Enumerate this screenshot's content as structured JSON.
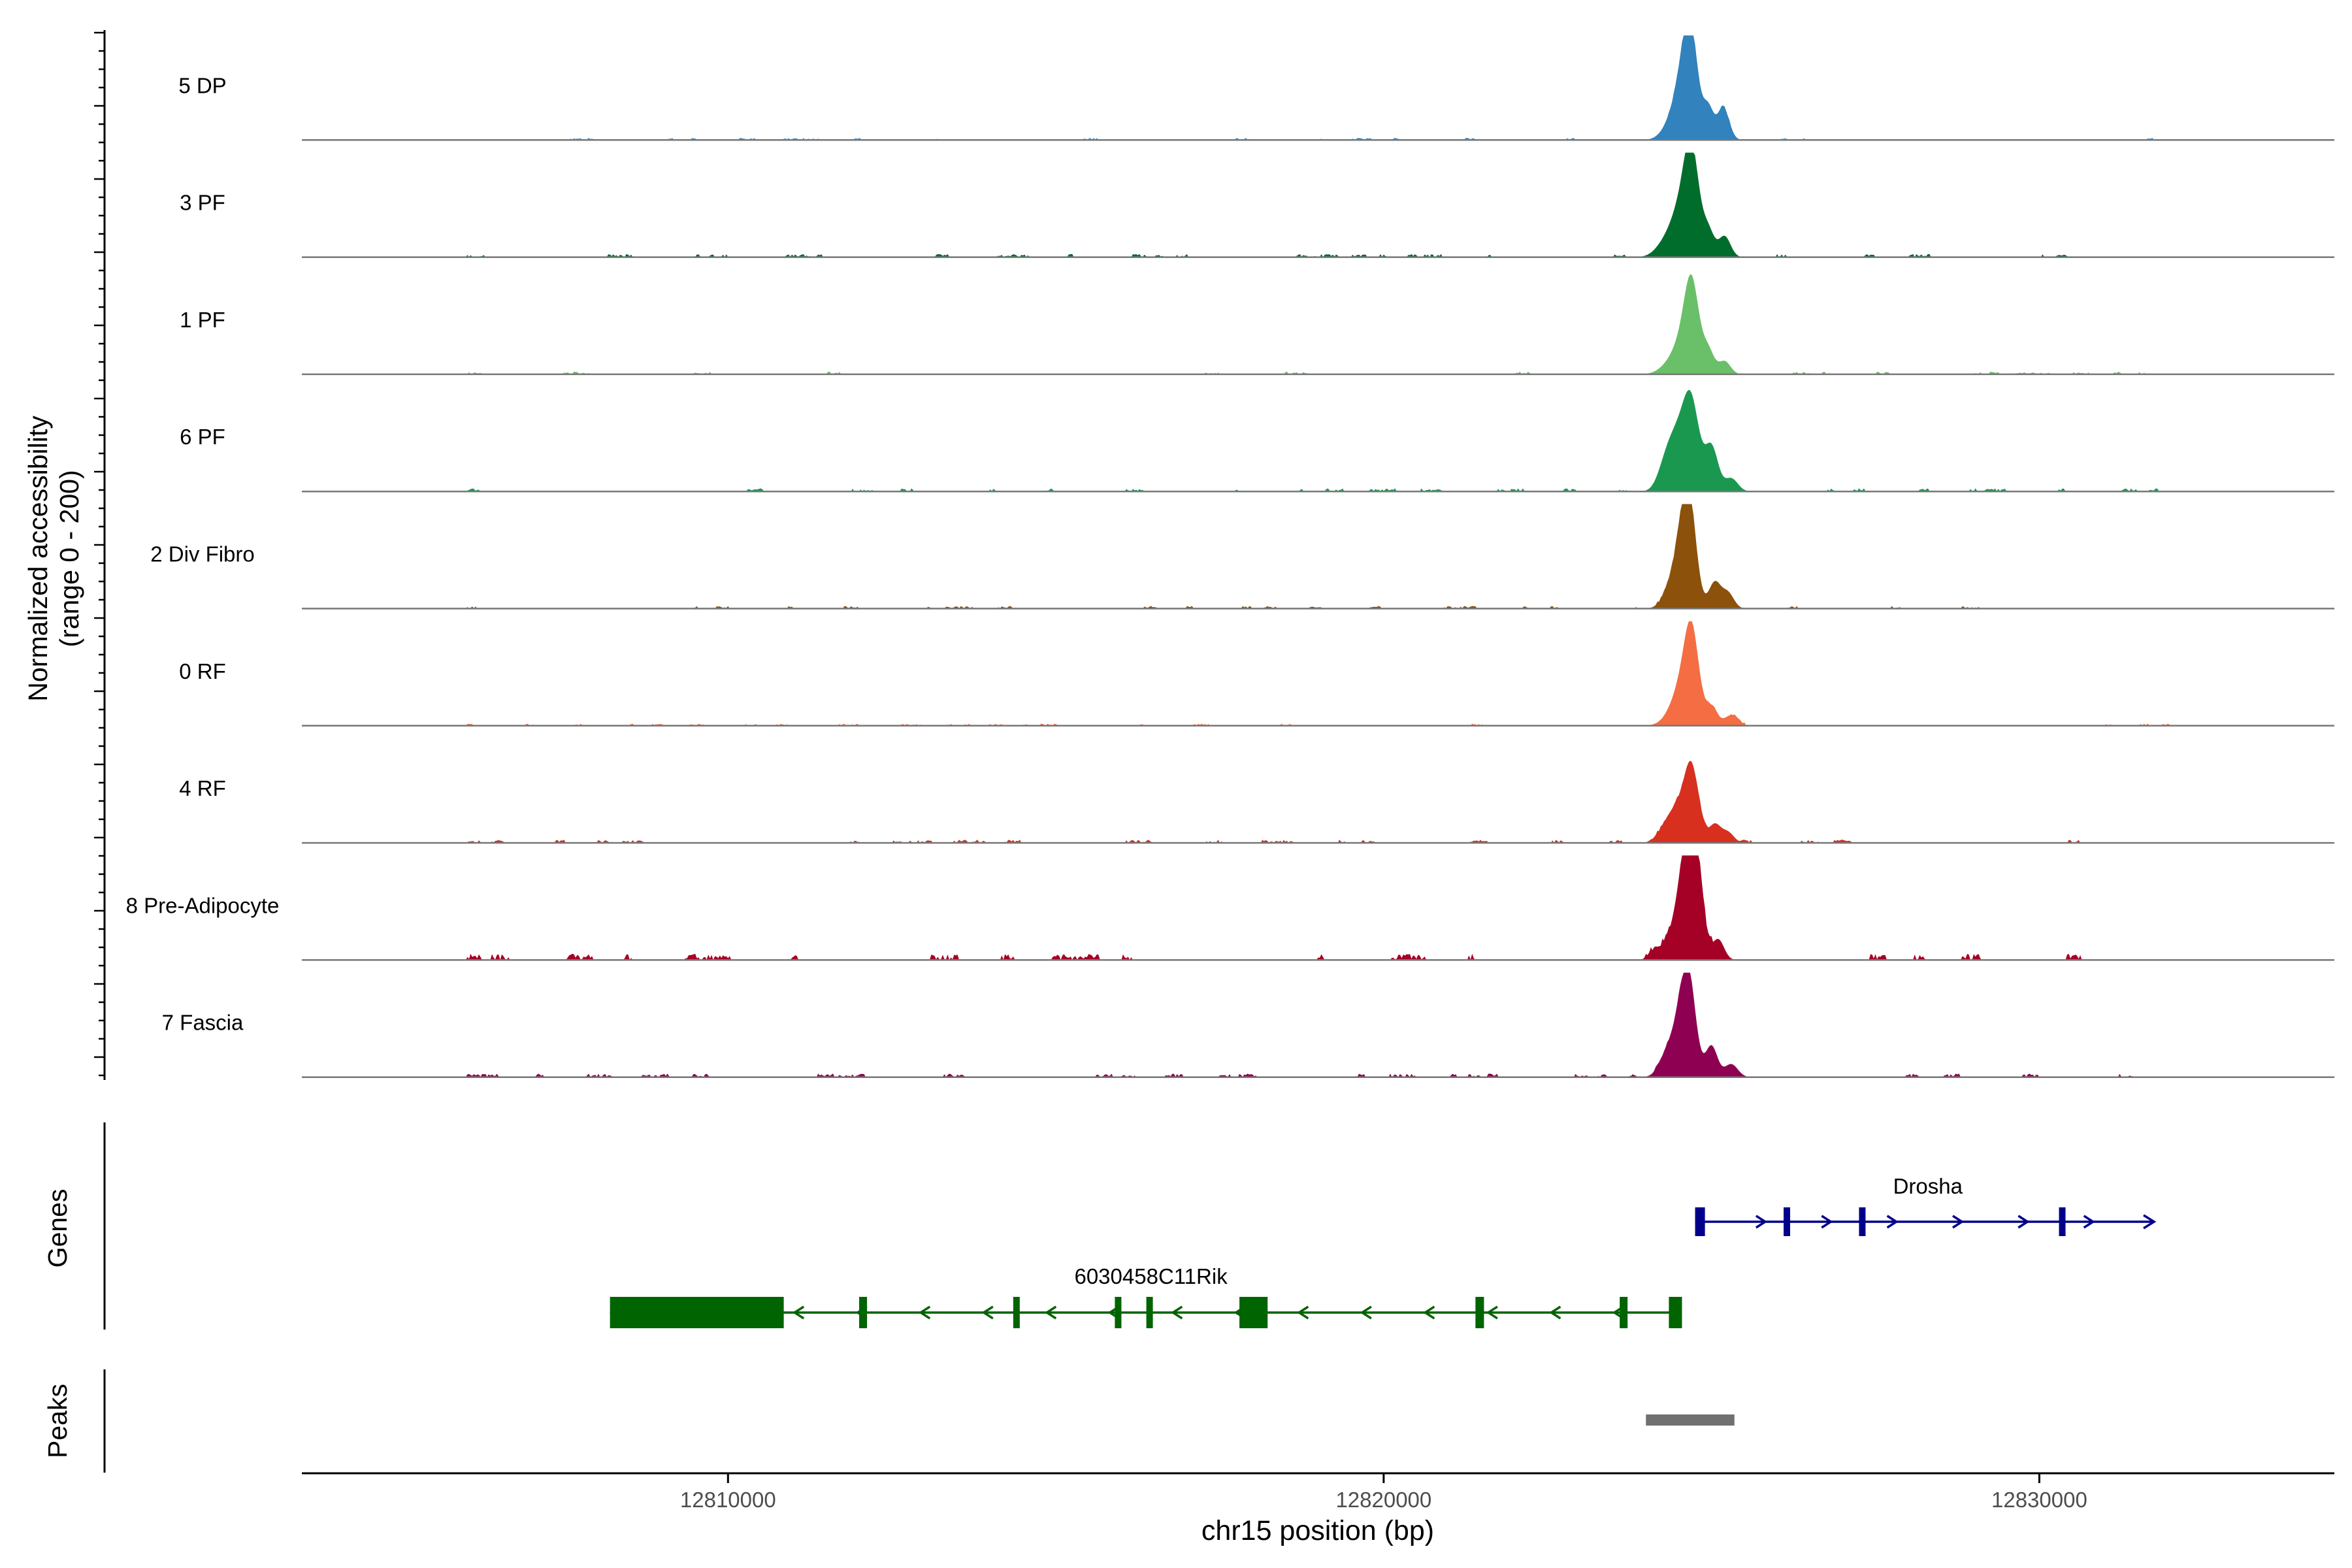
{
  "chart_data": {
    "type": "area",
    "ylabel_lines": [
      "Normalized accessibility",
      "(range 0 - 200)"
    ],
    "xlabel": "chr15 position (bp)",
    "xlim": [
      12803500,
      12834500
    ],
    "x_ticks": [
      12810000,
      12820000,
      12830000
    ],
    "x_tick_labels": [
      "12810000",
      "12820000",
      "12830000"
    ],
    "y_range": [
      0,
      200
    ],
    "tracks": [
      {
        "name": "5 DP",
        "color": "#3182bd",
        "peaks": [
          {
            "x": 12824680,
            "y": 180,
            "w": 110
          },
          {
            "x": 12824560,
            "y": 80,
            "w": 140
          },
          {
            "x": 12824950,
            "y": 60,
            "w": 80
          },
          {
            "x": 12825180,
            "y": 62,
            "w": 90
          },
          {
            "x": 12824400,
            "y": 25,
            "w": 150
          }
        ],
        "noise": 4
      },
      {
        "name": "3 PF",
        "color": "#006d2c",
        "peaks": [
          {
            "x": 12824700,
            "y": 170,
            "w": 110
          },
          {
            "x": 12824550,
            "y": 90,
            "w": 150
          },
          {
            "x": 12824950,
            "y": 50,
            "w": 90
          },
          {
            "x": 12825200,
            "y": 40,
            "w": 90
          },
          {
            "x": 12824300,
            "y": 25,
            "w": 150
          }
        ],
        "noise": 6
      },
      {
        "name": "1 PF",
        "color": "#6abf69",
        "peaks": [
          {
            "x": 12824700,
            "y": 160,
            "w": 110
          },
          {
            "x": 12824550,
            "y": 50,
            "w": 140
          },
          {
            "x": 12824950,
            "y": 45,
            "w": 90
          },
          {
            "x": 12825200,
            "y": 25,
            "w": 90
          },
          {
            "x": 12824350,
            "y": 15,
            "w": 150
          }
        ],
        "noise": 5
      },
      {
        "name": "6 PF",
        "color": "#1a9850",
        "peaks": [
          {
            "x": 12824700,
            "y": 145,
            "w": 120
          },
          {
            "x": 12824500,
            "y": 100,
            "w": 150
          },
          {
            "x": 12825000,
            "y": 85,
            "w": 100
          },
          {
            "x": 12825300,
            "y": 25,
            "w": 100
          },
          {
            "x": 12824300,
            "y": 40,
            "w": 120
          }
        ],
        "noise": 6
      },
      {
        "name": "2 Div Fibro",
        "color": "#8c510a",
        "peaks": [
          {
            "x": 12824650,
            "y": 175,
            "w": 110
          },
          {
            "x": 12824550,
            "y": 90,
            "w": 140
          },
          {
            "x": 12825050,
            "y": 50,
            "w": 90
          },
          {
            "x": 12825250,
            "y": 30,
            "w": 90
          },
          {
            "x": 12824350,
            "y": 20,
            "w": 120
          }
        ],
        "noise": 5
      },
      {
        "name": "0 RF",
        "color": "#f46d43",
        "peaks": [
          {
            "x": 12824700,
            "y": 165,
            "w": 110
          },
          {
            "x": 12824550,
            "y": 60,
            "w": 140
          },
          {
            "x": 12825000,
            "y": 35,
            "w": 90
          },
          {
            "x": 12825300,
            "y": 20,
            "w": 100
          },
          {
            "x": 12824400,
            "y": 15,
            "w": 150
          }
        ],
        "noise": 4
      },
      {
        "name": "4 RF",
        "color": "#d7301f",
        "peaks": [
          {
            "x": 12824700,
            "y": 130,
            "w": 110
          },
          {
            "x": 12824500,
            "y": 60,
            "w": 150
          },
          {
            "x": 12825050,
            "y": 35,
            "w": 90
          },
          {
            "x": 12825250,
            "y": 20,
            "w": 90
          },
          {
            "x": 12824300,
            "y": 20,
            "w": 120
          }
        ],
        "noise": 6
      },
      {
        "name": "8 Pre-Adipocyte",
        "color": "#a50026",
        "peaks": [
          {
            "x": 12824650,
            "y": 200,
            "w": 100
          },
          {
            "x": 12824800,
            "y": 140,
            "w": 90
          },
          {
            "x": 12824500,
            "y": 90,
            "w": 140
          },
          {
            "x": 12825100,
            "y": 40,
            "w": 90
          },
          {
            "x": 12824150,
            "y": 20,
            "w": 90
          }
        ],
        "noise": 12
      },
      {
        "name": "7 Fascia",
        "color": "#8e0152",
        "peaks": [
          {
            "x": 12824650,
            "y": 170,
            "w": 110
          },
          {
            "x": 12824500,
            "y": 80,
            "w": 140
          },
          {
            "x": 12825000,
            "y": 60,
            "w": 90
          },
          {
            "x": 12825300,
            "y": 25,
            "w": 100
          },
          {
            "x": 12824300,
            "y": 25,
            "w": 120
          }
        ],
        "noise": 7
      }
    ],
    "genes": [
      {
        "name": "Drosha",
        "strand": "+",
        "color": "#00008b",
        "start": 12824750,
        "end": 12831750,
        "exons": [
          [
            12824750,
            12824900
          ],
          [
            12826100,
            12826180
          ],
          [
            12827250,
            12827310
          ],
          [
            12830300,
            12830350
          ]
        ]
      },
      {
        "name": "6030458C11Rik",
        "strand": "-",
        "color": "#006400",
        "start": 12808200,
        "end": 12824550,
        "exons": [
          [
            12808200,
            12810850
          ],
          [
            12812000,
            12812120
          ],
          [
            12814350,
            12814400
          ],
          [
            12815900,
            12816000
          ],
          [
            12816380,
            12816420
          ],
          [
            12817800,
            12818230
          ],
          [
            12821400,
            12821530
          ],
          [
            12823600,
            12823720
          ],
          [
            12824350,
            12824550
          ]
        ]
      }
    ],
    "peak_regions": [
      [
        12824000,
        12825350
      ]
    ],
    "panel_labels": {
      "genes": "Genes",
      "peaks": "Peaks"
    }
  }
}
